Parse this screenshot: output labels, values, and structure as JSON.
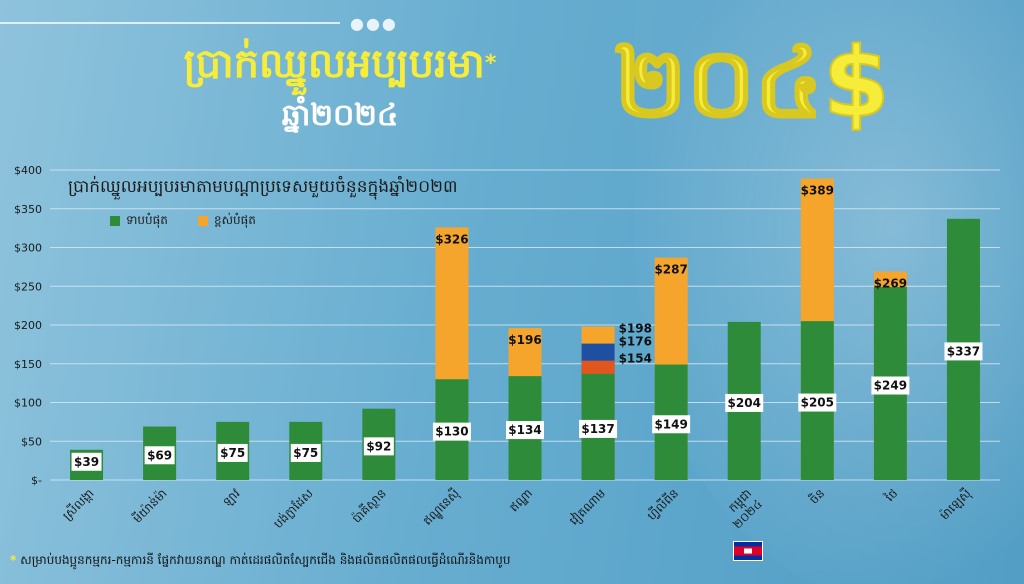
{
  "header": {
    "title": "ប្រាក់ឈ្នួលអប្បបរមា",
    "title_mark": "*",
    "subtitle": "ឆ្នាំ២០២៤",
    "big_number": "២០៤$"
  },
  "colors": {
    "lowest": "#2e8b3a",
    "highest": "#f6a52c",
    "mid_blue": "#1f4fa0",
    "mid_orange": "#e1561f",
    "accent_yellow": "#f6ec3a"
  },
  "footnote": {
    "mark": "*",
    "text": "សម្រាប់បងប្អូនកម្មករ-កម្មការនី ផ្នែកវាយនភណ្ឌ កាត់ដេរផលិតស្បែកជើង និងផលិតផលិតផលធ្វើដំណើរនិងកាបូប"
  },
  "flag_icon": "cambodia-flag-icon",
  "chart_data": {
    "type": "bar",
    "title": "ប្រាក់ឈ្នួលអប្បបរមាតាមបណ្តាប្រទេសមួយចំនួនក្នុងឆ្នាំ២០២៣",
    "legend": [
      {
        "name": "ទាបបំផុត",
        "color": "#2e8b3a"
      },
      {
        "name": "ខ្ពស់បំផុត",
        "color": "#f6a52c"
      }
    ],
    "ylim": [
      0,
      400
    ],
    "yticks": [
      "$-",
      "$50",
      "$100",
      "$150",
      "$200",
      "$250",
      "$300",
      "$350",
      "$400"
    ],
    "ytick_values": [
      0,
      50,
      100,
      150,
      200,
      250,
      300,
      350,
      400
    ],
    "grid": true,
    "categories": [
      "ស្រីលង្កា",
      "មីយ៉ាន់ម៉ា",
      "ឡាវ",
      "បង់ក្លាដែស",
      "ប៉ាគីស្ថាន",
      "ឥណ្ឌូនេស៊ី",
      "ឥណ្ឌា",
      "វៀតណាម",
      "ហ្វីលីពីន",
      "កម្ពុជា ២០២៤",
      "ចិន",
      "ថៃ",
      "ម៉ាឡេស៊ី"
    ],
    "lowest": [
      39,
      69,
      75,
      75,
      92,
      130,
      134,
      137,
      149,
      204,
      205,
      249,
      337
    ],
    "lowest_labels": [
      "$39",
      "$69",
      "$75",
      "$75",
      "$92",
      "$130",
      "$134",
      "$137",
      "$149",
      "$204",
      "$205",
      "$249",
      "$337"
    ],
    "highest": [
      null,
      null,
      null,
      null,
      null,
      326,
      196,
      198,
      287,
      null,
      389,
      269,
      null
    ],
    "highest_labels": [
      "",
      "",
      "",
      "",
      "",
      "$326",
      "$196",
      "$198",
      "$287",
      "",
      "$389",
      "$269",
      ""
    ],
    "extra_levels": [
      {
        "category": "វៀតណាម",
        "value": 176,
        "label": "$176",
        "color": "#1f4fa0"
      },
      {
        "category": "វៀតណាម",
        "value": 154,
        "label": "$154",
        "color": "#e1561f"
      }
    ]
  }
}
